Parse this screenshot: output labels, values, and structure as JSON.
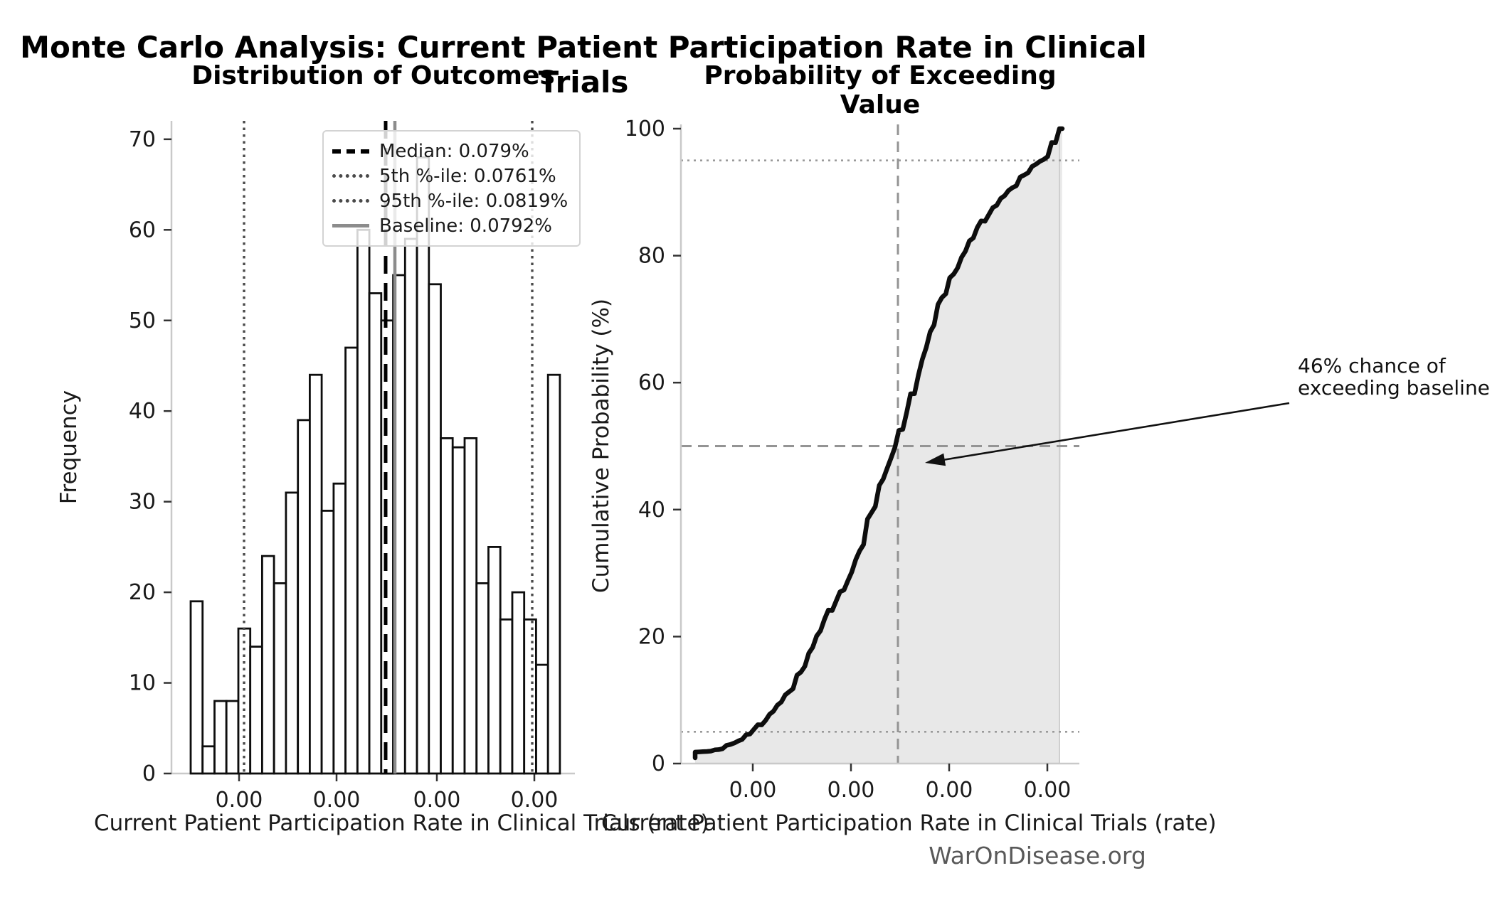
{
  "suptitle": "Monte Carlo Analysis: Current Patient Participation Rate in Clinical Trials",
  "watermark": "WarOnDisease.org",
  "left_chart": {
    "title": "Distribution of Outcomes",
    "xlabel": "Current Patient Participation Rate in Clinical Trials (rate)",
    "ylabel": "Frequency",
    "y_tick_labels": [
      "0",
      "10",
      "20",
      "30",
      "40",
      "50",
      "60",
      "70"
    ],
    "x_tick_labels": [
      "0.00",
      "0.00",
      "0.00",
      "0.00"
    ],
    "legend": {
      "items": [
        {
          "label": "Median: 0.079%",
          "style": "dashed-black"
        },
        {
          "label": "5th %-ile: 0.0761%",
          "style": "dotted-gray"
        },
        {
          "label": "95th %-ile: 0.0819%",
          "style": "dotted-gray"
        },
        {
          "label": "Baseline: 0.0792%",
          "style": "solid-gray"
        }
      ]
    }
  },
  "right_chart": {
    "title": "Probability of Exceeding Value",
    "xlabel": "Current Patient Participation Rate in Clinical Trials (rate)",
    "ylabel": "Cumulative Probability (%)",
    "y_tick_labels": [
      "0",
      "20",
      "40",
      "60",
      "80",
      "100"
    ],
    "x_tick_labels": [
      "0.00",
      "0.00",
      "0.00",
      "0.00"
    ],
    "annotation": {
      "line1": "46% chance of",
      "line2": "exceeding baseline",
      "exceed_probability_pct": 46
    }
  },
  "chart_data": [
    {
      "type": "bar",
      "title": "Distribution of Outcomes",
      "xlabel": "Current Patient Participation Rate in Clinical Trials (rate)",
      "ylabel": "Frequency",
      "ylim": [
        0,
        72
      ],
      "x_tick_labels": [
        "0.00",
        "0.00",
        "0.00",
        "0.00"
      ],
      "n_simulations": 1000,
      "n_bins": 31,
      "values": [
        19,
        3,
        8,
        8,
        16,
        14,
        24,
        21,
        31,
        39,
        44,
        29,
        32,
        47,
        60,
        53,
        50,
        55,
        59,
        68,
        54,
        37,
        36,
        37,
        21,
        25,
        17,
        20,
        17,
        12,
        44
      ],
      "markers": {
        "median_pct": 0.079,
        "p5_pct": 0.0761,
        "p95_pct": 0.0819,
        "baseline_pct": 0.0792
      },
      "legend_position": "upper center",
      "bar_fill": "#ffffff",
      "bar_edge": "#0d0d0d"
    },
    {
      "type": "line",
      "title": "Probability of Exceeding Value",
      "xlabel": "Current Patient Participation Rate in Clinical Trials (rate)",
      "ylabel": "Cumulative Probability (%)",
      "ylim": [
        0,
        100
      ],
      "x_tick_labels": [
        "0.00",
        "0.00",
        "0.00",
        "0.00"
      ],
      "series": [
        {
          "name": "empirical CDF",
          "cumulative_pct": [
            1.9,
            2.2,
            3.0,
            3.8,
            5.4,
            6.8,
            9.2,
            11.3,
            14.4,
            18.3,
            22.7,
            25.6,
            28.8,
            33.5,
            39.5,
            44.8,
            49.8,
            55.3,
            61.2,
            68.0,
            73.4,
            77.1,
            80.7,
            84.4,
            86.5,
            89.0,
            90.7,
            92.7,
            94.4,
            95.6,
            100.0
          ]
        }
      ],
      "reference_lines": {
        "h_dashed_pct": 50,
        "h_dotted_pct": [
          5,
          95
        ],
        "v_dashed": "baseline (0.0792%)"
      },
      "area_fill": "gray",
      "annotation": "46% chance of exceeding baseline",
      "colors": {
        "curve": "#0d0d0d",
        "dashes": "#949494",
        "fill": "rgba(130,130,130,0.18)"
      }
    }
  ]
}
